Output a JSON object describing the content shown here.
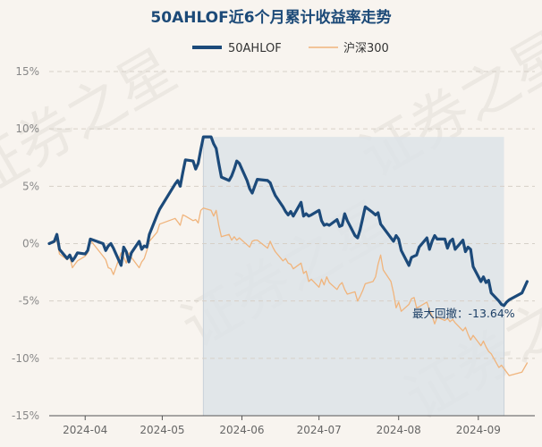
{
  "chart_data": {
    "type": "line",
    "title": "50AHLOF近6个月累计收益率走势",
    "xlabel": "",
    "ylabel": "",
    "ylim": [
      -15,
      15
    ],
    "yticks": [
      15,
      10,
      5,
      0,
      -5,
      -10,
      -15
    ],
    "ytick_labels": [
      "15%",
      "10%",
      "5%",
      "0%",
      "-5%",
      "-10%",
      "-15%"
    ],
    "x_range": [
      "2024-03-18",
      "2024-09-23"
    ],
    "xticks": [
      {
        "date": "2024-04-01",
        "label": "2024-04"
      },
      {
        "date": "2024-05-01",
        "label": "2024-05"
      },
      {
        "date": "2024-06-01",
        "label": "2024-06"
      },
      {
        "date": "2024-07-01",
        "label": "2024-07"
      },
      {
        "date": "2024-08-01",
        "label": "2024-08"
      },
      {
        "date": "2024-09-01",
        "label": "2024-09"
      }
    ],
    "grid": "horizontal-dashed",
    "legend_position": "top",
    "series": [
      {
        "name": "50AHLOF",
        "color": "#1c4a7a",
        "points": [
          [
            "2024-03-18",
            0.0
          ],
          [
            "2024-03-20",
            0.2
          ],
          [
            "2024-03-21",
            0.8
          ],
          [
            "2024-03-22",
            -0.5
          ],
          [
            "2024-03-25",
            -1.3
          ],
          [
            "2024-03-26",
            -1.0
          ],
          [
            "2024-03-27",
            -1.5
          ],
          [
            "2024-03-28",
            -1.2
          ],
          [
            "2024-03-29",
            -0.8
          ],
          [
            "2024-04-01",
            -0.9
          ],
          [
            "2024-04-02",
            -0.6
          ],
          [
            "2024-04-03",
            0.4
          ],
          [
            "2024-04-08",
            0.0
          ],
          [
            "2024-04-09",
            -0.6
          ],
          [
            "2024-04-10",
            -0.2
          ],
          [
            "2024-04-11",
            0.0
          ],
          [
            "2024-04-12",
            -0.4
          ],
          [
            "2024-04-15",
            -1.9
          ],
          [
            "2024-04-16",
            -0.3
          ],
          [
            "2024-04-17",
            -0.7
          ],
          [
            "2024-04-18",
            -1.6
          ],
          [
            "2024-04-19",
            -0.8
          ],
          [
            "2024-04-22",
            0.2
          ],
          [
            "2024-04-23",
            -0.5
          ],
          [
            "2024-04-24",
            -0.2
          ],
          [
            "2024-04-25",
            -0.3
          ],
          [
            "2024-04-26",
            0.8
          ],
          [
            "2024-04-29",
            2.5
          ],
          [
            "2024-04-30",
            3.0
          ],
          [
            "2024-05-06",
            5.2
          ],
          [
            "2024-05-07",
            5.5
          ],
          [
            "2024-05-08",
            5.0
          ],
          [
            "2024-05-09",
            6.2
          ],
          [
            "2024-05-10",
            7.3
          ],
          [
            "2024-05-13",
            7.2
          ],
          [
            "2024-05-14",
            6.5
          ],
          [
            "2024-05-15",
            7.0
          ],
          [
            "2024-05-16",
            8.2
          ],
          [
            "2024-05-17",
            9.3
          ],
          [
            "2024-05-20",
            9.3
          ],
          [
            "2024-05-21",
            8.7
          ],
          [
            "2024-05-22",
            8.3
          ],
          [
            "2024-05-23",
            7.0
          ],
          [
            "2024-05-24",
            5.8
          ],
          [
            "2024-05-27",
            5.5
          ],
          [
            "2024-05-28",
            5.9
          ],
          [
            "2024-05-29",
            6.5
          ],
          [
            "2024-05-30",
            7.2
          ],
          [
            "2024-05-31",
            7.0
          ],
          [
            "2024-06-03",
            5.5
          ],
          [
            "2024-06-04",
            4.8
          ],
          [
            "2024-06-05",
            4.4
          ],
          [
            "2024-06-06",
            5.0
          ],
          [
            "2024-06-07",
            5.6
          ],
          [
            "2024-06-11",
            5.5
          ],
          [
            "2024-06-12",
            5.3
          ],
          [
            "2024-06-13",
            4.7
          ],
          [
            "2024-06-14",
            4.2
          ],
          [
            "2024-06-17",
            3.2
          ],
          [
            "2024-06-18",
            2.8
          ],
          [
            "2024-06-19",
            2.5
          ],
          [
            "2024-06-20",
            2.8
          ],
          [
            "2024-06-21",
            2.4
          ],
          [
            "2024-06-24",
            3.6
          ],
          [
            "2024-06-25",
            2.4
          ],
          [
            "2024-06-26",
            2.6
          ],
          [
            "2024-06-27",
            2.4
          ],
          [
            "2024-06-28",
            2.5
          ],
          [
            "2024-07-01",
            2.9
          ],
          [
            "2024-07-02",
            2.0
          ],
          [
            "2024-07-03",
            1.6
          ],
          [
            "2024-07-04",
            1.7
          ],
          [
            "2024-07-05",
            1.6
          ],
          [
            "2024-07-08",
            2.1
          ],
          [
            "2024-07-09",
            1.5
          ],
          [
            "2024-07-10",
            1.6
          ],
          [
            "2024-07-11",
            2.6
          ],
          [
            "2024-07-12",
            2.0
          ],
          [
            "2024-07-15",
            0.7
          ],
          [
            "2024-07-16",
            0.5
          ],
          [
            "2024-07-17",
            1.2
          ],
          [
            "2024-07-18",
            2.2
          ],
          [
            "2024-07-19",
            3.2
          ],
          [
            "2024-07-22",
            2.7
          ],
          [
            "2024-07-23",
            2.5
          ],
          [
            "2024-07-24",
            2.7
          ],
          [
            "2024-07-25",
            1.7
          ],
          [
            "2024-07-26",
            1.4
          ],
          [
            "2024-07-29",
            0.5
          ],
          [
            "2024-07-30",
            0.2
          ],
          [
            "2024-07-31",
            0.7
          ],
          [
            "2024-08-01",
            0.4
          ],
          [
            "2024-08-02",
            -0.6
          ],
          [
            "2024-08-05",
            -1.9
          ],
          [
            "2024-08-06",
            -1.2
          ],
          [
            "2024-08-07",
            -1.1
          ],
          [
            "2024-08-08",
            -1.0
          ],
          [
            "2024-08-09",
            -0.3
          ],
          [
            "2024-08-12",
            0.5
          ],
          [
            "2024-08-13",
            -0.5
          ],
          [
            "2024-08-14",
            0.2
          ],
          [
            "2024-08-15",
            0.7
          ],
          [
            "2024-08-16",
            0.4
          ],
          [
            "2024-08-19",
            0.4
          ],
          [
            "2024-08-20",
            -0.4
          ],
          [
            "2024-08-21",
            0.2
          ],
          [
            "2024-08-22",
            0.4
          ],
          [
            "2024-08-23",
            -0.5
          ],
          [
            "2024-08-26",
            0.3
          ],
          [
            "2024-08-27",
            -0.7
          ],
          [
            "2024-08-28",
            -0.3
          ],
          [
            "2024-08-29",
            -0.5
          ],
          [
            "2024-08-30",
            -2.0
          ],
          [
            "2024-09-02",
            -3.3
          ],
          [
            "2024-09-03",
            -2.9
          ],
          [
            "2024-09-04",
            -3.4
          ],
          [
            "2024-09-05",
            -3.2
          ],
          [
            "2024-09-06",
            -4.3
          ],
          [
            "2024-09-09",
            -5.0
          ],
          [
            "2024-09-10",
            -5.3
          ],
          [
            "2024-09-11",
            -5.4
          ],
          [
            "2024-09-12",
            -5.1
          ],
          [
            "2024-09-13",
            -4.9
          ],
          [
            "2024-09-18",
            -4.3
          ],
          [
            "2024-09-20",
            -3.3
          ]
        ]
      },
      {
        "name": "沪深300",
        "color": "#f0b47c",
        "points": [
          [
            "2024-03-18",
            0.0
          ],
          [
            "2024-03-20",
            0.1
          ],
          [
            "2024-03-21",
            0.3
          ],
          [
            "2024-03-22",
            -0.9
          ],
          [
            "2024-03-25",
            -1.4
          ],
          [
            "2024-03-26",
            -1.1
          ],
          [
            "2024-03-27",
            -2.1
          ],
          [
            "2024-03-28",
            -1.8
          ],
          [
            "2024-03-29",
            -1.5
          ],
          [
            "2024-04-01",
            -1.1
          ],
          [
            "2024-04-02",
            -0.8
          ],
          [
            "2024-04-03",
            0.3
          ],
          [
            "2024-04-08",
            -1.1
          ],
          [
            "2024-04-09",
            -1.4
          ],
          [
            "2024-04-10",
            -2.1
          ],
          [
            "2024-04-11",
            -2.2
          ],
          [
            "2024-04-12",
            -2.7
          ],
          [
            "2024-04-15",
            -0.8
          ],
          [
            "2024-04-16",
            -1.2
          ],
          [
            "2024-04-17",
            -1.7
          ],
          [
            "2024-04-18",
            -0.8
          ],
          [
            "2024-04-19",
            -1.2
          ],
          [
            "2024-04-22",
            -2.1
          ],
          [
            "2024-04-23",
            -1.6
          ],
          [
            "2024-04-24",
            -1.3
          ],
          [
            "2024-04-25",
            -0.6
          ],
          [
            "2024-04-26",
            0.2
          ],
          [
            "2024-04-29",
            1.0
          ],
          [
            "2024-04-30",
            1.7
          ],
          [
            "2024-05-06",
            2.2
          ],
          [
            "2024-05-07",
            1.9
          ],
          [
            "2024-05-08",
            1.6
          ],
          [
            "2024-05-09",
            2.5
          ],
          [
            "2024-05-10",
            2.4
          ],
          [
            "2024-05-13",
            2.0
          ],
          [
            "2024-05-14",
            2.1
          ],
          [
            "2024-05-15",
            1.8
          ],
          [
            "2024-05-16",
            2.9
          ],
          [
            "2024-05-17",
            3.1
          ],
          [
            "2024-05-20",
            2.9
          ],
          [
            "2024-05-21",
            2.4
          ],
          [
            "2024-05-22",
            2.9
          ],
          [
            "2024-05-23",
            1.6
          ],
          [
            "2024-05-24",
            0.6
          ],
          [
            "2024-05-27",
            0.8
          ],
          [
            "2024-05-28",
            0.3
          ],
          [
            "2024-05-29",
            0.6
          ],
          [
            "2024-05-30",
            0.3
          ],
          [
            "2024-05-31",
            0.5
          ],
          [
            "2024-06-03",
            -0.1
          ],
          [
            "2024-06-04",
            -0.3
          ],
          [
            "2024-06-05",
            0.2
          ],
          [
            "2024-06-06",
            0.3
          ],
          [
            "2024-06-07",
            0.3
          ],
          [
            "2024-06-11",
            -0.4
          ],
          [
            "2024-06-12",
            0.2
          ],
          [
            "2024-06-13",
            -0.3
          ],
          [
            "2024-06-14",
            -0.7
          ],
          [
            "2024-06-17",
            -1.5
          ],
          [
            "2024-06-18",
            -1.3
          ],
          [
            "2024-06-19",
            -1.7
          ],
          [
            "2024-06-20",
            -1.8
          ],
          [
            "2024-06-21",
            -2.2
          ],
          [
            "2024-06-24",
            -1.7
          ],
          [
            "2024-06-25",
            -2.6
          ],
          [
            "2024-06-26",
            -2.4
          ],
          [
            "2024-06-27",
            -3.3
          ],
          [
            "2024-06-28",
            -3.1
          ],
          [
            "2024-07-01",
            -3.8
          ],
          [
            "2024-07-02",
            -3.1
          ],
          [
            "2024-07-03",
            -3.6
          ],
          [
            "2024-07-04",
            -2.9
          ],
          [
            "2024-07-05",
            -3.4
          ],
          [
            "2024-07-08",
            -4.0
          ],
          [
            "2024-07-09",
            -3.6
          ],
          [
            "2024-07-10",
            -3.4
          ],
          [
            "2024-07-11",
            -4.0
          ],
          [
            "2024-07-12",
            -4.4
          ],
          [
            "2024-07-15",
            -4.2
          ],
          [
            "2024-07-16",
            -5.0
          ],
          [
            "2024-07-17",
            -4.6
          ],
          [
            "2024-07-18",
            -4.1
          ],
          [
            "2024-07-19",
            -3.5
          ],
          [
            "2024-07-22",
            -3.3
          ],
          [
            "2024-07-23",
            -2.9
          ],
          [
            "2024-07-24",
            -1.8
          ],
          [
            "2024-07-25",
            -1.0
          ],
          [
            "2024-07-26",
            -2.3
          ],
          [
            "2024-07-29",
            -3.3
          ],
          [
            "2024-07-30",
            -4.3
          ],
          [
            "2024-07-31",
            -5.6
          ],
          [
            "2024-08-01",
            -5.1
          ],
          [
            "2024-08-02",
            -5.9
          ],
          [
            "2024-08-05",
            -5.3
          ],
          [
            "2024-08-06",
            -4.8
          ],
          [
            "2024-08-07",
            -4.7
          ],
          [
            "2024-08-08",
            -5.6
          ],
          [
            "2024-08-09",
            -5.5
          ],
          [
            "2024-08-12",
            -5.1
          ],
          [
            "2024-08-13",
            -5.8
          ],
          [
            "2024-08-14",
            -6.3
          ],
          [
            "2024-08-15",
            -7.0
          ],
          [
            "2024-08-16",
            -6.4
          ],
          [
            "2024-08-19",
            -6.7
          ],
          [
            "2024-08-20",
            -6.5
          ],
          [
            "2024-08-21",
            -6.8
          ],
          [
            "2024-08-22",
            -6.6
          ],
          [
            "2024-08-23",
            -6.9
          ],
          [
            "2024-08-26",
            -7.6
          ],
          [
            "2024-08-27",
            -7.3
          ],
          [
            "2024-08-28",
            -7.9
          ],
          [
            "2024-08-29",
            -8.4
          ],
          [
            "2024-08-30",
            -8.0
          ],
          [
            "2024-09-02",
            -8.9
          ],
          [
            "2024-09-03",
            -8.5
          ],
          [
            "2024-09-04",
            -9.0
          ],
          [
            "2024-09-05",
            -9.4
          ],
          [
            "2024-09-06",
            -9.6
          ],
          [
            "2024-09-09",
            -10.8
          ],
          [
            "2024-09-10",
            -10.6
          ],
          [
            "2024-09-11",
            -10.9
          ],
          [
            "2024-09-12",
            -11.2
          ],
          [
            "2024-09-13",
            -11.5
          ],
          [
            "2024-09-18",
            -11.2
          ],
          [
            "2024-09-20",
            -10.4
          ]
        ]
      }
    ],
    "drawdown": {
      "label": "最大回撤：-13.64%",
      "start": "2024-05-17",
      "end": "2024-09-11",
      "fill_color": "#dde3e8"
    },
    "watermark": "证券之星"
  }
}
